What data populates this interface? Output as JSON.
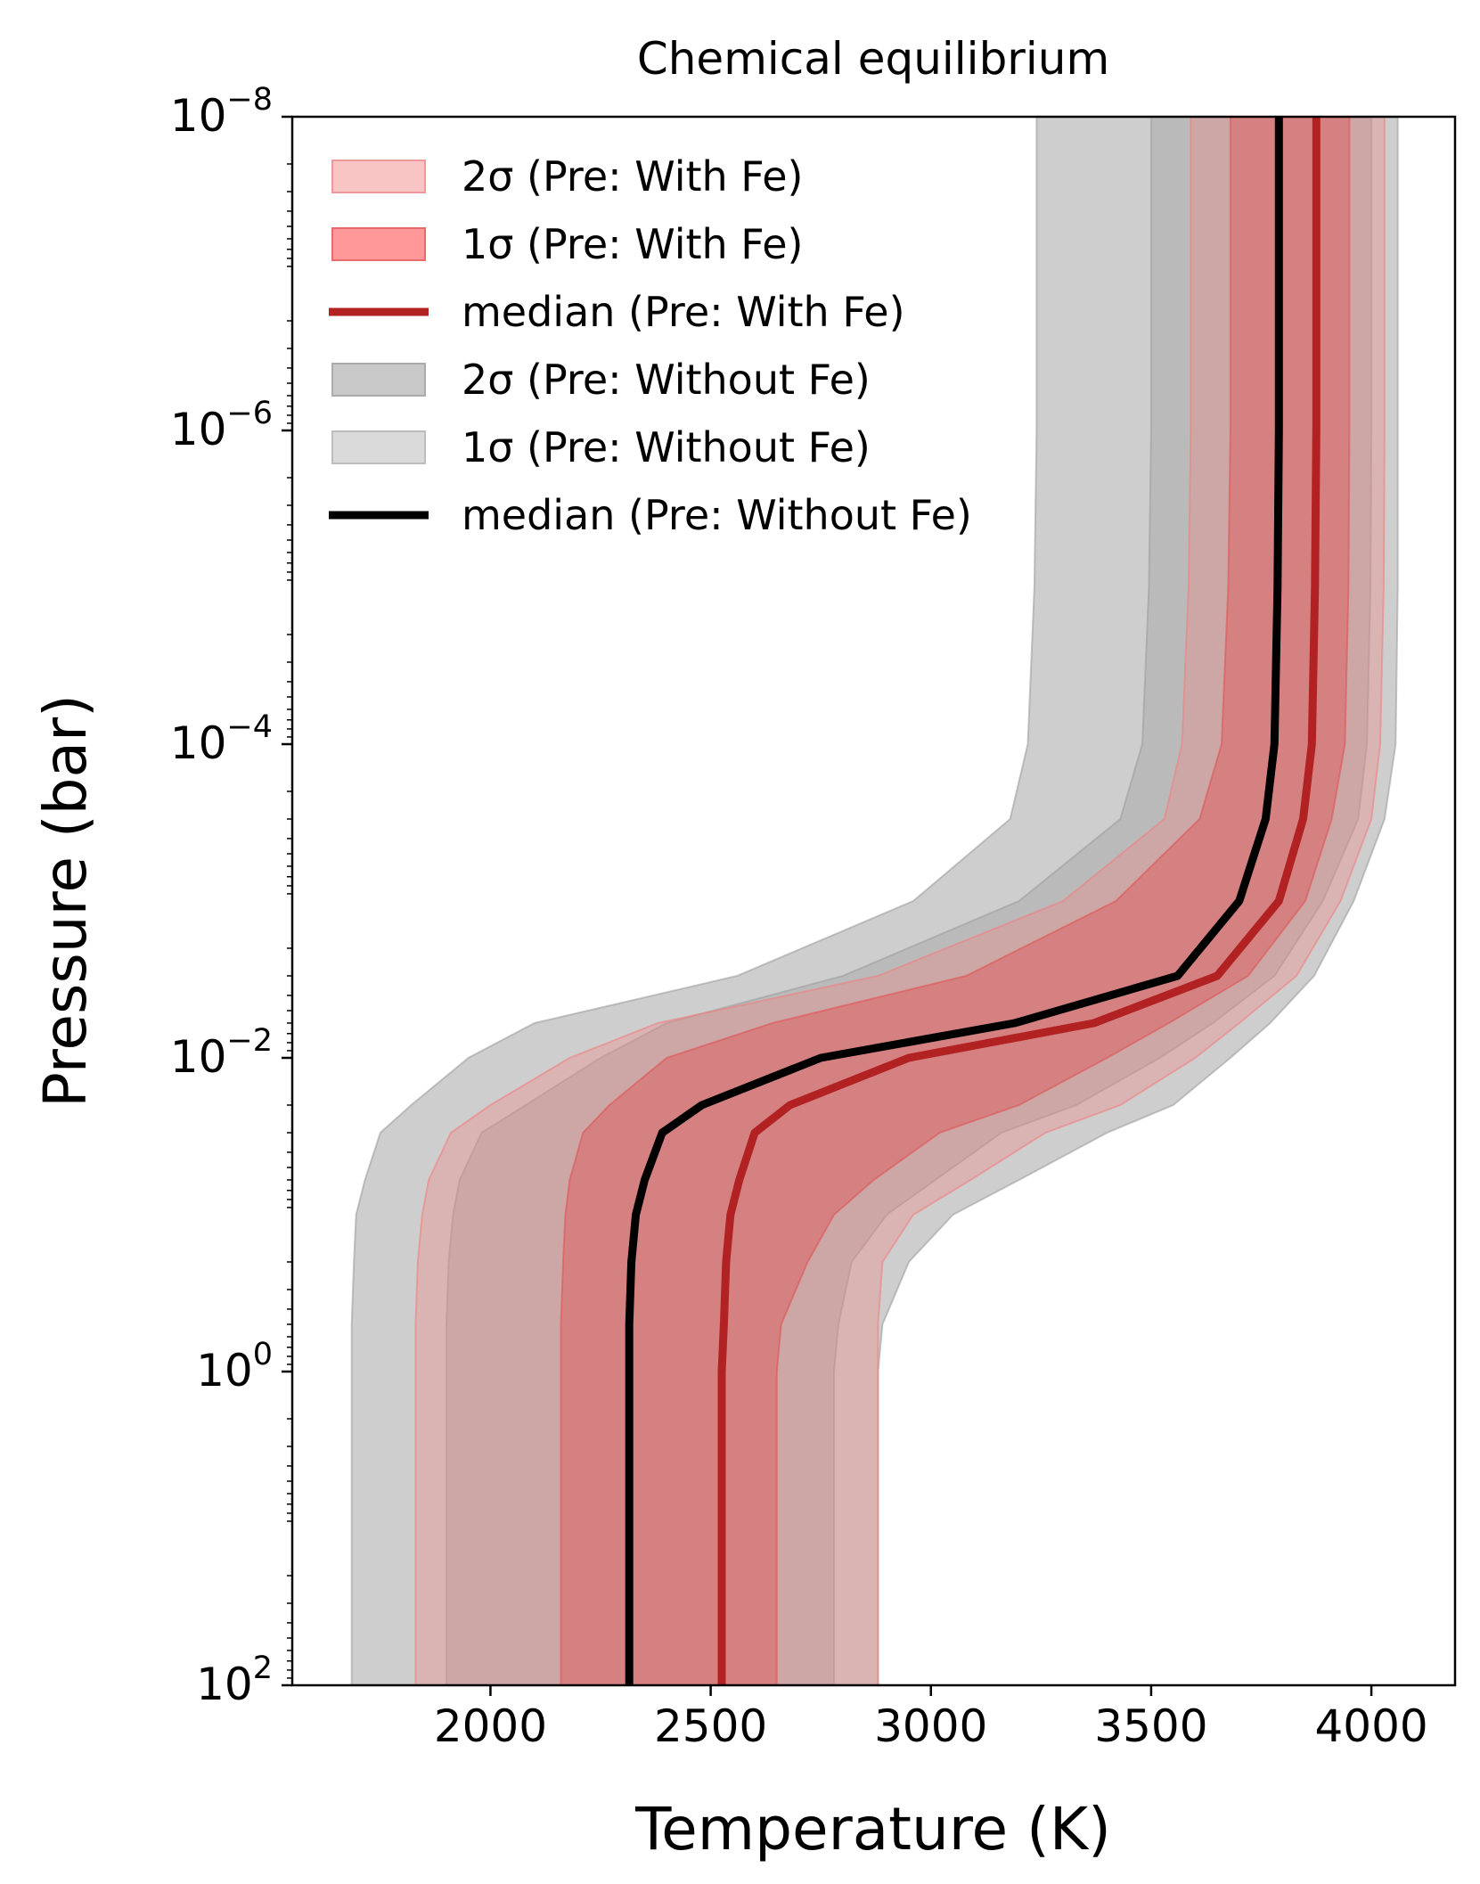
{
  "chart_data": {
    "type": "area",
    "title": "Chemical equilibrium",
    "xlabel": "Temperature (K)",
    "ylabel": "Pressure (bar)",
    "xlim": [
      1550,
      4190
    ],
    "ylim": [
      100,
      1e-08
    ],
    "yscale": "log",
    "y_inverted": true,
    "grid": false,
    "legend_position": "top-left",
    "xticks": [
      2000,
      2500,
      3000,
      3500,
      4000
    ],
    "xtick_labels": [
      "2000",
      "2500",
      "3000",
      "3500",
      "4000"
    ],
    "yticks": [
      1e-08,
      1e-06,
      0.0001,
      0.01,
      1,
      100
    ],
    "ytick_labels": [
      {
        "base": "10",
        "exp": "−8"
      },
      {
        "base": "10",
        "exp": "−6"
      },
      {
        "base": "10",
        "exp": "−4"
      },
      {
        "base": "10",
        "exp": "−2"
      },
      {
        "base": "10",
        "exp": "0"
      },
      {
        "base": "10",
        "exp": "2"
      }
    ],
    "pressure": [
      1e-08,
      1e-06,
      1e-05,
      0.0001,
      0.0003,
      0.001,
      0.003,
      0.006,
      0.01,
      0.02,
      0.03,
      0.06,
      0.1,
      0.2,
      0.5,
      1,
      100
    ],
    "series": [
      {
        "name": "2σ (Pre: Without Fe)",
        "kind": "band",
        "color": "#9e9e9e",
        "opacity": 0.5,
        "lower": [
          3240,
          3240,
          3235,
          3220,
          3180,
          2960,
          2560,
          2100,
          1950,
          1820,
          1750,
          1715,
          1695,
          1690,
          1685,
          1685,
          1685
        ],
        "upper": [
          4060,
          4060,
          4060,
          4055,
          4030,
          3960,
          3870,
          3770,
          3680,
          3550,
          3400,
          3200,
          3050,
          2950,
          2890,
          2880,
          2880
        ]
      },
      {
        "name": "1σ (Pre: Without Fe)",
        "kind": "band",
        "color": "#9e9e9e",
        "opacity": 0.4,
        "lower": [
          3500,
          3500,
          3495,
          3480,
          3430,
          3200,
          2800,
          2400,
          2250,
          2080,
          1980,
          1930,
          1915,
          1905,
          1900,
          1900,
          1900
        ],
        "upper": [
          4000,
          4000,
          3998,
          3990,
          3970,
          3890,
          3780,
          3640,
          3520,
          3330,
          3160,
          3010,
          2900,
          2820,
          2790,
          2780,
          2780
        ]
      },
      {
        "name": "2σ (Pre: With Fe)",
        "kind": "band",
        "color": "#f08080",
        "opacity": 0.35,
        "lower": [
          3590,
          3590,
          3585,
          3570,
          3530,
          3300,
          2880,
          2380,
          2180,
          2000,
          1910,
          1860,
          1845,
          1835,
          1830,
          1830,
          1830
        ],
        "upper": [
          4030,
          4030,
          4028,
          4020,
          4000,
          3930,
          3830,
          3700,
          3600,
          3430,
          3260,
          3090,
          2960,
          2890,
          2880,
          2880,
          2880
        ]
      },
      {
        "name": "1σ (Pre: With Fe)",
        "kind": "band",
        "color": "#e05555",
        "opacity": 0.45,
        "lower": [
          3680,
          3680,
          3675,
          3660,
          3610,
          3420,
          3080,
          2640,
          2400,
          2270,
          2210,
          2180,
          2170,
          2165,
          2160,
          2160,
          2160
        ],
        "upper": [
          3950,
          3950,
          3948,
          3940,
          3910,
          3850,
          3720,
          3540,
          3400,
          3200,
          3020,
          2870,
          2780,
          2720,
          2660,
          2650,
          2650
        ]
      },
      {
        "name": "median (Pre: With Fe)",
        "kind": "line",
        "color": "#b22222",
        "values": [
          3875,
          3875,
          3872,
          3865,
          3845,
          3790,
          3650,
          3370,
          2950,
          2680,
          2600,
          2565,
          2545,
          2535,
          2530,
          2525,
          2525
        ]
      },
      {
        "name": "median (Pre: Without Fe)",
        "kind": "line",
        "color": "#000000",
        "values": [
          3790,
          3790,
          3787,
          3780,
          3760,
          3700,
          3560,
          3190,
          2750,
          2480,
          2390,
          2350,
          2330,
          2320,
          2315,
          2315,
          2315
        ]
      }
    ],
    "legend": [
      {
        "label": "2σ (Pre: With Fe)",
        "swatch": "patch",
        "fill": "#f8c4c4",
        "stroke": "#ee9999"
      },
      {
        "label": "1σ (Pre: With Fe)",
        "swatch": "patch",
        "fill": "#ff9898",
        "stroke": "#e86a6a"
      },
      {
        "label": "median (Pre: With Fe)",
        "swatch": "line",
        "stroke": "#b22222"
      },
      {
        "label": "2σ (Pre: Without Fe)",
        "swatch": "patch",
        "fill": "#c8c8c8",
        "stroke": "#ababab"
      },
      {
        "label": "1σ (Pre: Without Fe)",
        "swatch": "patch",
        "fill": "#dadada",
        "stroke": "#bdbdbd"
      },
      {
        "label": "median (Pre: Without Fe)",
        "swatch": "line",
        "stroke": "#000000"
      }
    ]
  }
}
